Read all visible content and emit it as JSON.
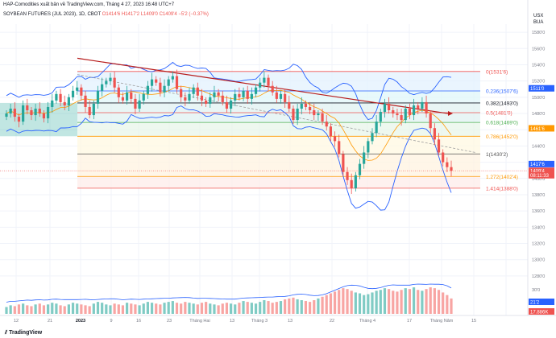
{
  "header": {
    "publish_line": "HAP-Comodities xuất bản về TradingView.com, Tháng 4 27, 2023 16:48 UTC+7",
    "symbol": "SOYBEAN FUTURES (JUL 2023), 1D, CBOT",
    "ohlc": {
      "o": "O1414'6",
      "h": "H1417'2",
      "l": "L1409'0",
      "c": "C1409'4",
      "change": "−5'2 (−0.37%)"
    }
  },
  "currency": {
    "line1": "USX",
    "line2": "BUA"
  },
  "footer": {
    "brand": "TradingView"
  },
  "colors": {
    "up": "#26a69a",
    "down": "#ef5350",
    "band": "#2962ff",
    "ma": "#ff9800",
    "trend": "#b71c1c"
  },
  "price_axis": {
    "ticks": [
      "1580'0",
      "1560'0",
      "1540'0",
      "1520'0",
      "1500'0",
      "1480'0",
      "1460'0",
      "1440'0",
      "1420'0",
      "1400'0",
      "1380'0",
      "1360'0",
      "1340'0",
      "1320'0",
      "1300'0",
      "1280'0"
    ],
    "badges": [
      {
        "label": "1511'0",
        "bg": "#2962ff",
        "fg": "#ffffff"
      },
      {
        "label": "1461'6",
        "bg": "#ff9800",
        "fg": "#ffffff"
      },
      {
        "label": "1417'6",
        "bg": "#2962ff",
        "fg": "#ffffff"
      },
      {
        "label": "1409'4",
        "bg": "#ef5350",
        "fg": "#ffffff"
      },
      {
        "label": "08:11:33",
        "bg": "#ef5350",
        "fg": "#ffffff"
      }
    ]
  },
  "volume_axis": {
    "ticks": [
      "30'0"
    ],
    "badges": [
      {
        "label": "21'2",
        "bg": "#2962ff",
        "fg": "#ffffff"
      },
      {
        "label": "17.886K",
        "bg": "#ef5350",
        "fg": "#ffffff"
      }
    ]
  },
  "time_axis": [
    "12",
    "21",
    "2023",
    "9",
    "16",
    "23",
    "Tháng Hai",
    "13",
    "Tháng 3",
    "13",
    "22",
    "Tháng 4",
    "17",
    "Tháng Năm",
    "15"
  ],
  "chart_data": {
    "type": "candlestick",
    "title": "SOYBEAN FUTURES (JUL 2023), 1D, CBOT",
    "y_range": [
      1273,
      1590
    ],
    "current_price": 1409.5,
    "fib_levels": [
      {
        "ratio": "0",
        "label": "0(1531'6)",
        "value": 1531.75,
        "color": "#ef5350"
      },
      {
        "ratio": "0.236",
        "label": "0.236(1507'6)",
        "value": 1507.75,
        "color": "#2962ff"
      },
      {
        "ratio": "0.382",
        "label": "0.382(1493'0)",
        "value": 1493.0,
        "color": "#131722"
      },
      {
        "ratio": "0.5",
        "label": "0.5(1481'0)",
        "value": 1481.0,
        "color": "#ef5350"
      },
      {
        "ratio": "0.618",
        "label": "0.618(1469'0)",
        "value": 1469.0,
        "color": "#4caf50"
      },
      {
        "ratio": "0.786",
        "label": "0.786(1452'0)",
        "value": 1452.0,
        "color": "#ff9800"
      },
      {
        "ratio": "1",
        "label": "1(1430'2)",
        "value": 1430.25,
        "color": "#555555"
      },
      {
        "ratio": "1.272",
        "label": "1.272(1402'4)",
        "value": 1402.5,
        "color": "#ff9800"
      },
      {
        "ratio": "1.414",
        "label": "1.414(1388'0)",
        "value": 1388.0,
        "color": "#ef5350"
      }
    ],
    "candles": [
      1480,
      1486,
      1476,
      1470,
      1490,
      1484,
      1478,
      1486,
      1480,
      1474,
      1488,
      1496,
      1504,
      1494,
      1490,
      1500,
      1508,
      1512,
      1502,
      1488,
      1478,
      1492,
      1508,
      1516,
      1520,
      1524,
      1512,
      1500,
      1496,
      1506,
      1498,
      1486,
      1496,
      1504,
      1514,
      1522,
      1518,
      1506,
      1514,
      1522,
      1526,
      1510,
      1500,
      1496,
      1504,
      1512,
      1502,
      1496,
      1492,
      1500,
      1506,
      1502,
      1494,
      1486,
      1496,
      1504,
      1500,
      1508,
      1498,
      1504,
      1512,
      1518,
      1524,
      1514,
      1506,
      1498,
      1504,
      1494,
      1486,
      1472,
      1486,
      1492,
      1488,
      1484,
      1478,
      1480,
      1470,
      1464,
      1452,
      1446,
      1430,
      1408,
      1398,
      1388,
      1404,
      1418,
      1432,
      1446,
      1456,
      1470,
      1482,
      1492,
      1484,
      1480,
      1478,
      1472,
      1486,
      1478,
      1490,
      1486,
      1494,
      1480,
      1462,
      1448,
      1432,
      1420,
      1414,
      1409.5
    ],
    "volume": [
      8,
      10,
      9,
      11,
      12,
      10,
      9,
      11,
      12,
      10,
      11,
      13,
      12,
      10,
      9,
      11,
      13,
      12,
      11,
      10,
      9,
      12,
      14,
      13,
      11,
      10,
      12,
      11,
      10,
      13,
      12,
      11,
      10,
      12,
      14,
      13,
      12,
      11,
      13,
      14,
      15,
      13,
      12,
      14,
      13,
      12,
      11,
      13,
      14,
      12,
      11,
      10,
      12,
      13,
      12,
      11,
      13,
      15,
      14,
      13,
      12,
      14,
      16,
      15,
      13,
      14,
      15,
      17,
      18,
      19,
      17,
      16,
      15,
      14,
      16,
      18,
      20,
      22,
      24,
      26,
      28,
      30,
      29,
      27,
      25,
      24,
      22,
      23,
      25,
      27,
      28,
      30,
      29,
      27,
      26,
      28,
      30,
      29,
      31,
      28,
      27,
      29,
      31,
      30,
      28,
      25,
      22,
      18
    ]
  }
}
